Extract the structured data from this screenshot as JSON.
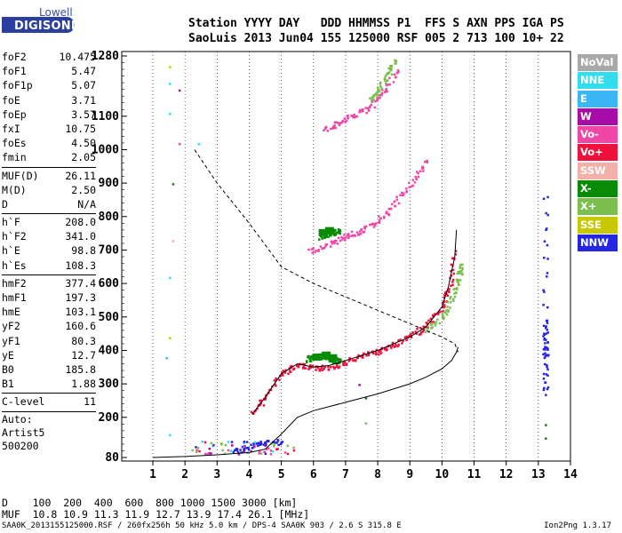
{
  "logo": {
    "top": "Lowell",
    "bottom": "DIGISONDE"
  },
  "header": {
    "line1": "Station YYYY DAY   DDD HHMMSS P1  FFS S AXN PPS IGA PS",
    "line2": "SaoLuis 2013 Jun04 155 125000 RSF 005 2 713 100 10+ 22"
  },
  "params": {
    "group1": [
      {
        "name": "foF2",
        "value": "10.475"
      },
      {
        "name": "foF1",
        "value": "5.47"
      },
      {
        "name": "foF1p",
        "value": "5.07"
      },
      {
        "name": "foE",
        "value": "3.71"
      },
      {
        "name": "foEp",
        "value": "3.57"
      },
      {
        "name": "fxI",
        "value": "10.75"
      },
      {
        "name": "foEs",
        "value": "4.50"
      },
      {
        "name": "fmin",
        "value": "2.05"
      }
    ],
    "group2": [
      {
        "name": "MUF(D)",
        "value": "26.11"
      },
      {
        "name": "M(D)",
        "value": "2.50"
      },
      {
        "name": "D",
        "value": "N/A"
      }
    ],
    "group3": [
      {
        "name": "h`F",
        "value": "208.0"
      },
      {
        "name": "h`F2",
        "value": "341.0"
      },
      {
        "name": "h`E",
        "value": "98.8"
      },
      {
        "name": "h`Es",
        "value": "108.3"
      }
    ],
    "group4": [
      {
        "name": "hmF2",
        "value": "377.4"
      },
      {
        "name": "hmF1",
        "value": "197.3"
      },
      {
        "name": "hmE",
        "value": "103.1"
      },
      {
        "name": "yF2",
        "value": "160.6"
      },
      {
        "name": "yF1",
        "value": "80.3"
      },
      {
        "name": "yE",
        "value": "12.7"
      },
      {
        "name": "B0",
        "value": "185.8"
      },
      {
        "name": "B1",
        "value": "1.88"
      }
    ],
    "clevel": {
      "name": "C-level",
      "value": "11"
    },
    "auto": [
      "Auto:",
      "Artist5",
      "500200"
    ]
  },
  "legend": [
    {
      "label": "NoVal",
      "color": "#a9a9a9"
    },
    {
      "label": "NNE",
      "color": "#33ddf0"
    },
    {
      "label": "E",
      "color": "#3bb7f5"
    },
    {
      "label": "W",
      "color": "#a80ca8"
    },
    {
      "label": "Vo-",
      "color": "#f046a8"
    },
    {
      "label": "Vo+",
      "color": "#f0103c"
    },
    {
      "label": "SSW",
      "color": "#f2b0a8"
    },
    {
      "label": "X-",
      "color": "#088c08"
    },
    {
      "label": "X+",
      "color": "#7bbf4f"
    },
    {
      "label": "SSE",
      "color": "#c8c800"
    },
    {
      "label": "NNW",
      "color": "#2525e6"
    }
  ],
  "chart_data": {
    "type": "scatter",
    "xlim": [
      1,
      14
    ],
    "ylim": [
      80,
      1280
    ],
    "xticks": [
      1,
      2,
      3,
      4,
      5,
      6,
      7,
      8,
      9,
      10,
      11,
      12,
      13,
      14
    ],
    "yticks": [
      80,
      200,
      300,
      400,
      500,
      600,
      700,
      800,
      900,
      1000,
      1100,
      1280
    ],
    "grid": "dotted vertical",
    "profile_curve": {
      "x": [
        1,
        2,
        3,
        4,
        4.5,
        5,
        5.5,
        6,
        7,
        8,
        9,
        9.5,
        10,
        10.3,
        10.45,
        10.5
      ],
      "y": [
        80,
        83,
        88,
        95,
        105,
        150,
        200,
        220,
        245,
        270,
        300,
        320,
        345,
        370,
        395,
        410
      ]
    },
    "muf_curve": {
      "x": [
        2.3,
        3.0,
        4.0,
        5.0,
        6.0,
        6.5,
        7.0,
        8.0,
        9.0,
        10.0,
        10.4,
        10.5
      ],
      "y": [
        1000,
        900,
        780,
        650,
        600,
        580,
        560,
        520,
        480,
        440,
        420,
        395
      ]
    },
    "trace_curve": {
      "x": [
        4.1,
        4.5,
        5.0,
        5.5,
        6.0,
        6.5,
        7.0,
        8.0,
        9.0,
        9.5,
        10.0,
        10.2,
        10.4,
        10.45
      ],
      "y": [
        210,
        260,
        330,
        360,
        350,
        355,
        370,
        400,
        440,
        470,
        530,
        590,
        680,
        760
      ]
    },
    "traces": [
      {
        "series": "Vo+",
        "x": [
          4.1,
          4.5,
          5.0,
          5.5,
          6.0,
          6.5,
          7.0,
          7.5,
          8.0,
          8.5,
          9.0,
          9.5,
          10.0,
          10.2,
          10.4
        ],
        "y": [
          215,
          265,
          335,
          360,
          348,
          352,
          368,
          385,
          400,
          420,
          445,
          475,
          530,
          590,
          700
        ]
      },
      {
        "series": "X-",
        "x": [
          5.8,
          6.0,
          6.2,
          6.4,
          6.6,
          6.8
        ],
        "y": [
          375,
          382,
          385,
          380,
          372,
          370
        ]
      },
      {
        "series": "X+",
        "x": [
          9.5,
          10.0,
          10.3,
          10.5,
          10.6
        ],
        "y": [
          460,
          500,
          560,
          620,
          660
        ]
      },
      {
        "series": "Vo-",
        "x": [
          5.9,
          6.5,
          7.0,
          7.5,
          8.0,
          8.5,
          9.0,
          9.5
        ],
        "y": [
          700,
          720,
          745,
          760,
          790,
          840,
          900,
          970
        ]
      },
      {
        "series": "X-",
        "x": [
          6.2,
          6.4,
          6.6,
          6.8
        ],
        "y": [
          740,
          748,
          755,
          760
        ]
      },
      {
        "series": "Vo-",
        "x": [
          6.3,
          6.8,
          7.3,
          7.8,
          8.2,
          8.6
        ],
        "y": [
          1060,
          1085,
          1105,
          1135,
          1180,
          1240
        ]
      },
      {
        "series": "X+",
        "x": [
          7.8,
          8.0,
          8.3,
          8.5
        ],
        "y": [
          1150,
          1180,
          1230,
          1270
        ]
      },
      {
        "series": "NNW",
        "x": [
          3.5,
          4.0,
          4.5,
          5.0
        ],
        "y": [
          100,
          115,
          125,
          130
        ]
      },
      {
        "series": "NNW",
        "x": [
          13.2,
          13.2,
          13.2,
          13.2,
          13.2
        ],
        "y": [
          860,
          490,
          420,
          380,
          270
        ]
      }
    ]
  },
  "bottom": {
    "line1": "D    100  200  400  600  800 1000 1500 3000 [km]",
    "line2": "MUF  10.8 10.9 11.3 11.9 12.7 13.9 17.4 26.1 [MHz]"
  },
  "footer": {
    "left": "SAA0K_2013155125000.RSF / 260fx256h 50 kHz 5.0 km / DPS-4 SAA0K 903 / 2.6 S 315.8 E",
    "right": "Ion2Png 1.3.17"
  }
}
